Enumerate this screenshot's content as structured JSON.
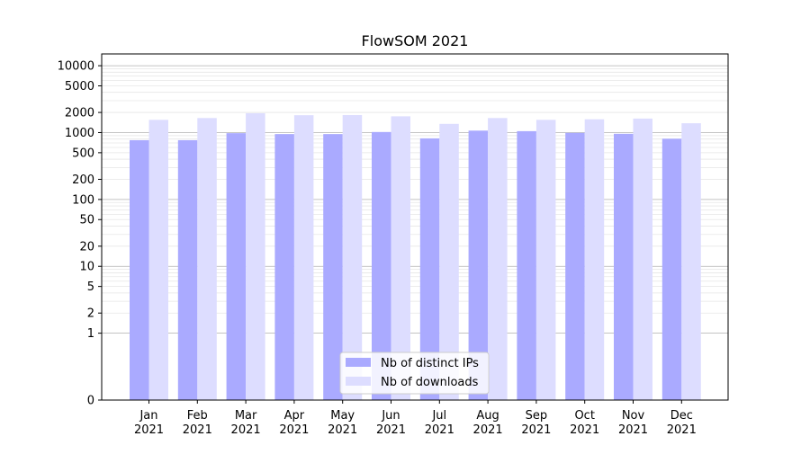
{
  "chart_data": {
    "type": "bar",
    "title": "FlowSOM 2021",
    "xlabel": "",
    "ylabel": "",
    "y_scale": "symlog",
    "ylim": [
      0,
      15000
    ],
    "grid": true,
    "legend_position": "bottom-center",
    "categories": [
      "Jan\n2021",
      "Feb\n2021",
      "Mar\n2021",
      "Apr\n2021",
      "May\n2021",
      "Jun\n2021",
      "Jul\n2021",
      "Aug\n2021",
      "Sep\n2021",
      "Oct\n2021",
      "Nov\n2021",
      "Dec\n2021"
    ],
    "y_ticks": [
      0,
      1,
      2,
      5,
      10,
      20,
      50,
      100,
      200,
      500,
      1000,
      2000,
      5000,
      10000
    ],
    "series": [
      {
        "name": "Nb of distinct IPs",
        "color": "#aaaaff",
        "values": [
          770,
          770,
          980,
          950,
          950,
          1020,
          820,
          1070,
          1050,
          990,
          960,
          810
        ]
      },
      {
        "name": "Nb of downloads",
        "color": "#ddddff",
        "values": [
          1550,
          1650,
          1950,
          1820,
          1830,
          1750,
          1350,
          1650,
          1550,
          1580,
          1620,
          1380
        ]
      }
    ]
  }
}
